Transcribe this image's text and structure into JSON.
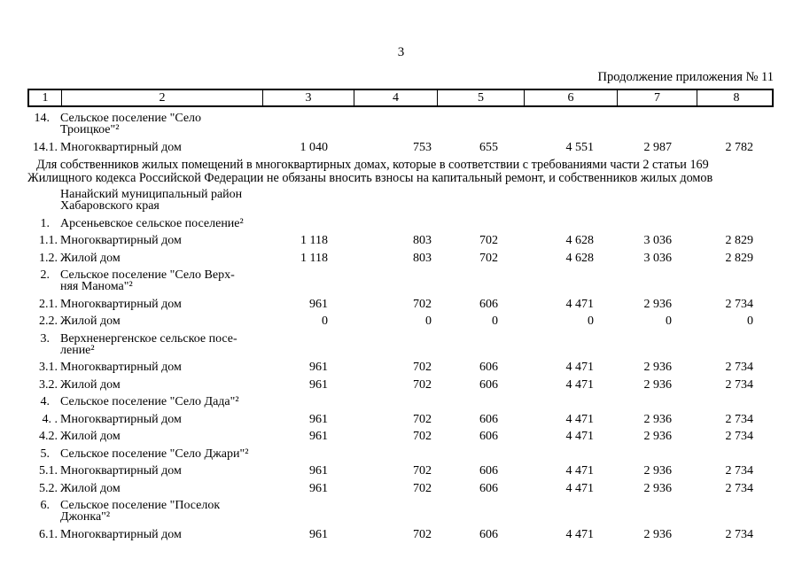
{
  "page": {
    "number": "3",
    "appendix_note": "Продолжение приложения № 11"
  },
  "table": {
    "header_cols": [
      "1",
      "2",
      "3",
      "4",
      "5",
      "6",
      "7",
      "8"
    ],
    "note": {
      "line1": "Для собственников жилых помещений в многоквартирных домах, которые в соответствии с требованиями части 2 статьи 169",
      "line2": "Жилищного кодекса Российской Федерации не обязаны вносить взносы на капитальный ремонт, и собственников жилых домов"
    },
    "district": {
      "line1": "Нанайский муниципальный район",
      "line2": "Хабаровского края"
    },
    "rows": [
      {
        "num": "14.",
        "name1": "Сельское поселение \"Село",
        "name2": "Троицкое\"²"
      },
      {
        "num": "14.1.",
        "name1": "Многоквартирный дом",
        "v1": "1 040",
        "v2": "753",
        "v3": "655",
        "v4": "4 551",
        "v5": "2 987",
        "v6": "2 782"
      },
      {
        "num": "1.",
        "name1": "Арсеньевское сельское поселение²"
      },
      {
        "num": "1.1.",
        "name1": "Многоквартирный дом",
        "v1": "1 118",
        "v2": "803",
        "v3": "702",
        "v4": "4 628",
        "v5": "3 036",
        "v6": "2 829"
      },
      {
        "num": "1.2.",
        "name1": "Жилой дом",
        "v1": "1 118",
        "v2": "803",
        "v3": "702",
        "v4": "4 628",
        "v5": "3 036",
        "v6": "2 829"
      },
      {
        "num": "2.",
        "name1": "Сельское поселение \"Село Верх-",
        "name2": "няя Манома\"²"
      },
      {
        "num": "2.1.",
        "name1": "Многоквартирный дом",
        "v1": "961",
        "v2": "702",
        "v3": "606",
        "v4": "4 471",
        "v5": "2 936",
        "v6": "2 734"
      },
      {
        "num": "2.2.",
        "name1": "Жилой дом",
        "v1": "0",
        "v2": "0",
        "v3": "0",
        "v4": "0",
        "v5": "0",
        "v6": "0"
      },
      {
        "num": "3.",
        "name1": "Верхненергенское сельское посе-",
        "name2": "ление²"
      },
      {
        "num": "3.1.",
        "name1": "Многоквартирный дом",
        "v1": "961",
        "v2": "702",
        "v3": "606",
        "v4": "4 471",
        "v5": "2 936",
        "v6": "2 734"
      },
      {
        "num": "3.2.",
        "name1": "Жилой дом",
        "v1": "961",
        "v2": "702",
        "v3": "606",
        "v4": "4 471",
        "v5": "2 936",
        "v6": "2 734"
      },
      {
        "num": "4.",
        "name1": "Сельское поселение \"Село Дада\"²"
      },
      {
        "num": "4. .",
        "name1": "Многоквартирный дом",
        "v1": "961",
        "v2": "702",
        "v3": "606",
        "v4": "4 471",
        "v5": "2 936",
        "v6": "2 734"
      },
      {
        "num": "4.2.",
        "name1": "Жилой дом",
        "v1": "961",
        "v2": "702",
        "v3": "606",
        "v4": "4 471",
        "v5": "2 936",
        "v6": "2 734"
      },
      {
        "num": "5.",
        "name1": "Сельское поселение \"Село Джари\"²"
      },
      {
        "num": "5.1.",
        "name1": "Многоквартирный дом",
        "v1": "961",
        "v2": "702",
        "v3": "606",
        "v4": "4 471",
        "v5": "2 936",
        "v6": "2 734"
      },
      {
        "num": "5.2.",
        "name1": "Жилой дом",
        "v1": "961",
        "v2": "702",
        "v3": "606",
        "v4": "4 471",
        "v5": "2 936",
        "v6": "2 734"
      },
      {
        "num": "6.",
        "name1": "Сельское поселение \"Поселок",
        "name2": "Джонка\"²"
      },
      {
        "num": "6.1.",
        "name1": "Многоквартирный дом",
        "v1": "961",
        "v2": "702",
        "v3": "606",
        "v4": "4 471",
        "v5": "2 936",
        "v6": "2 734"
      }
    ]
  }
}
